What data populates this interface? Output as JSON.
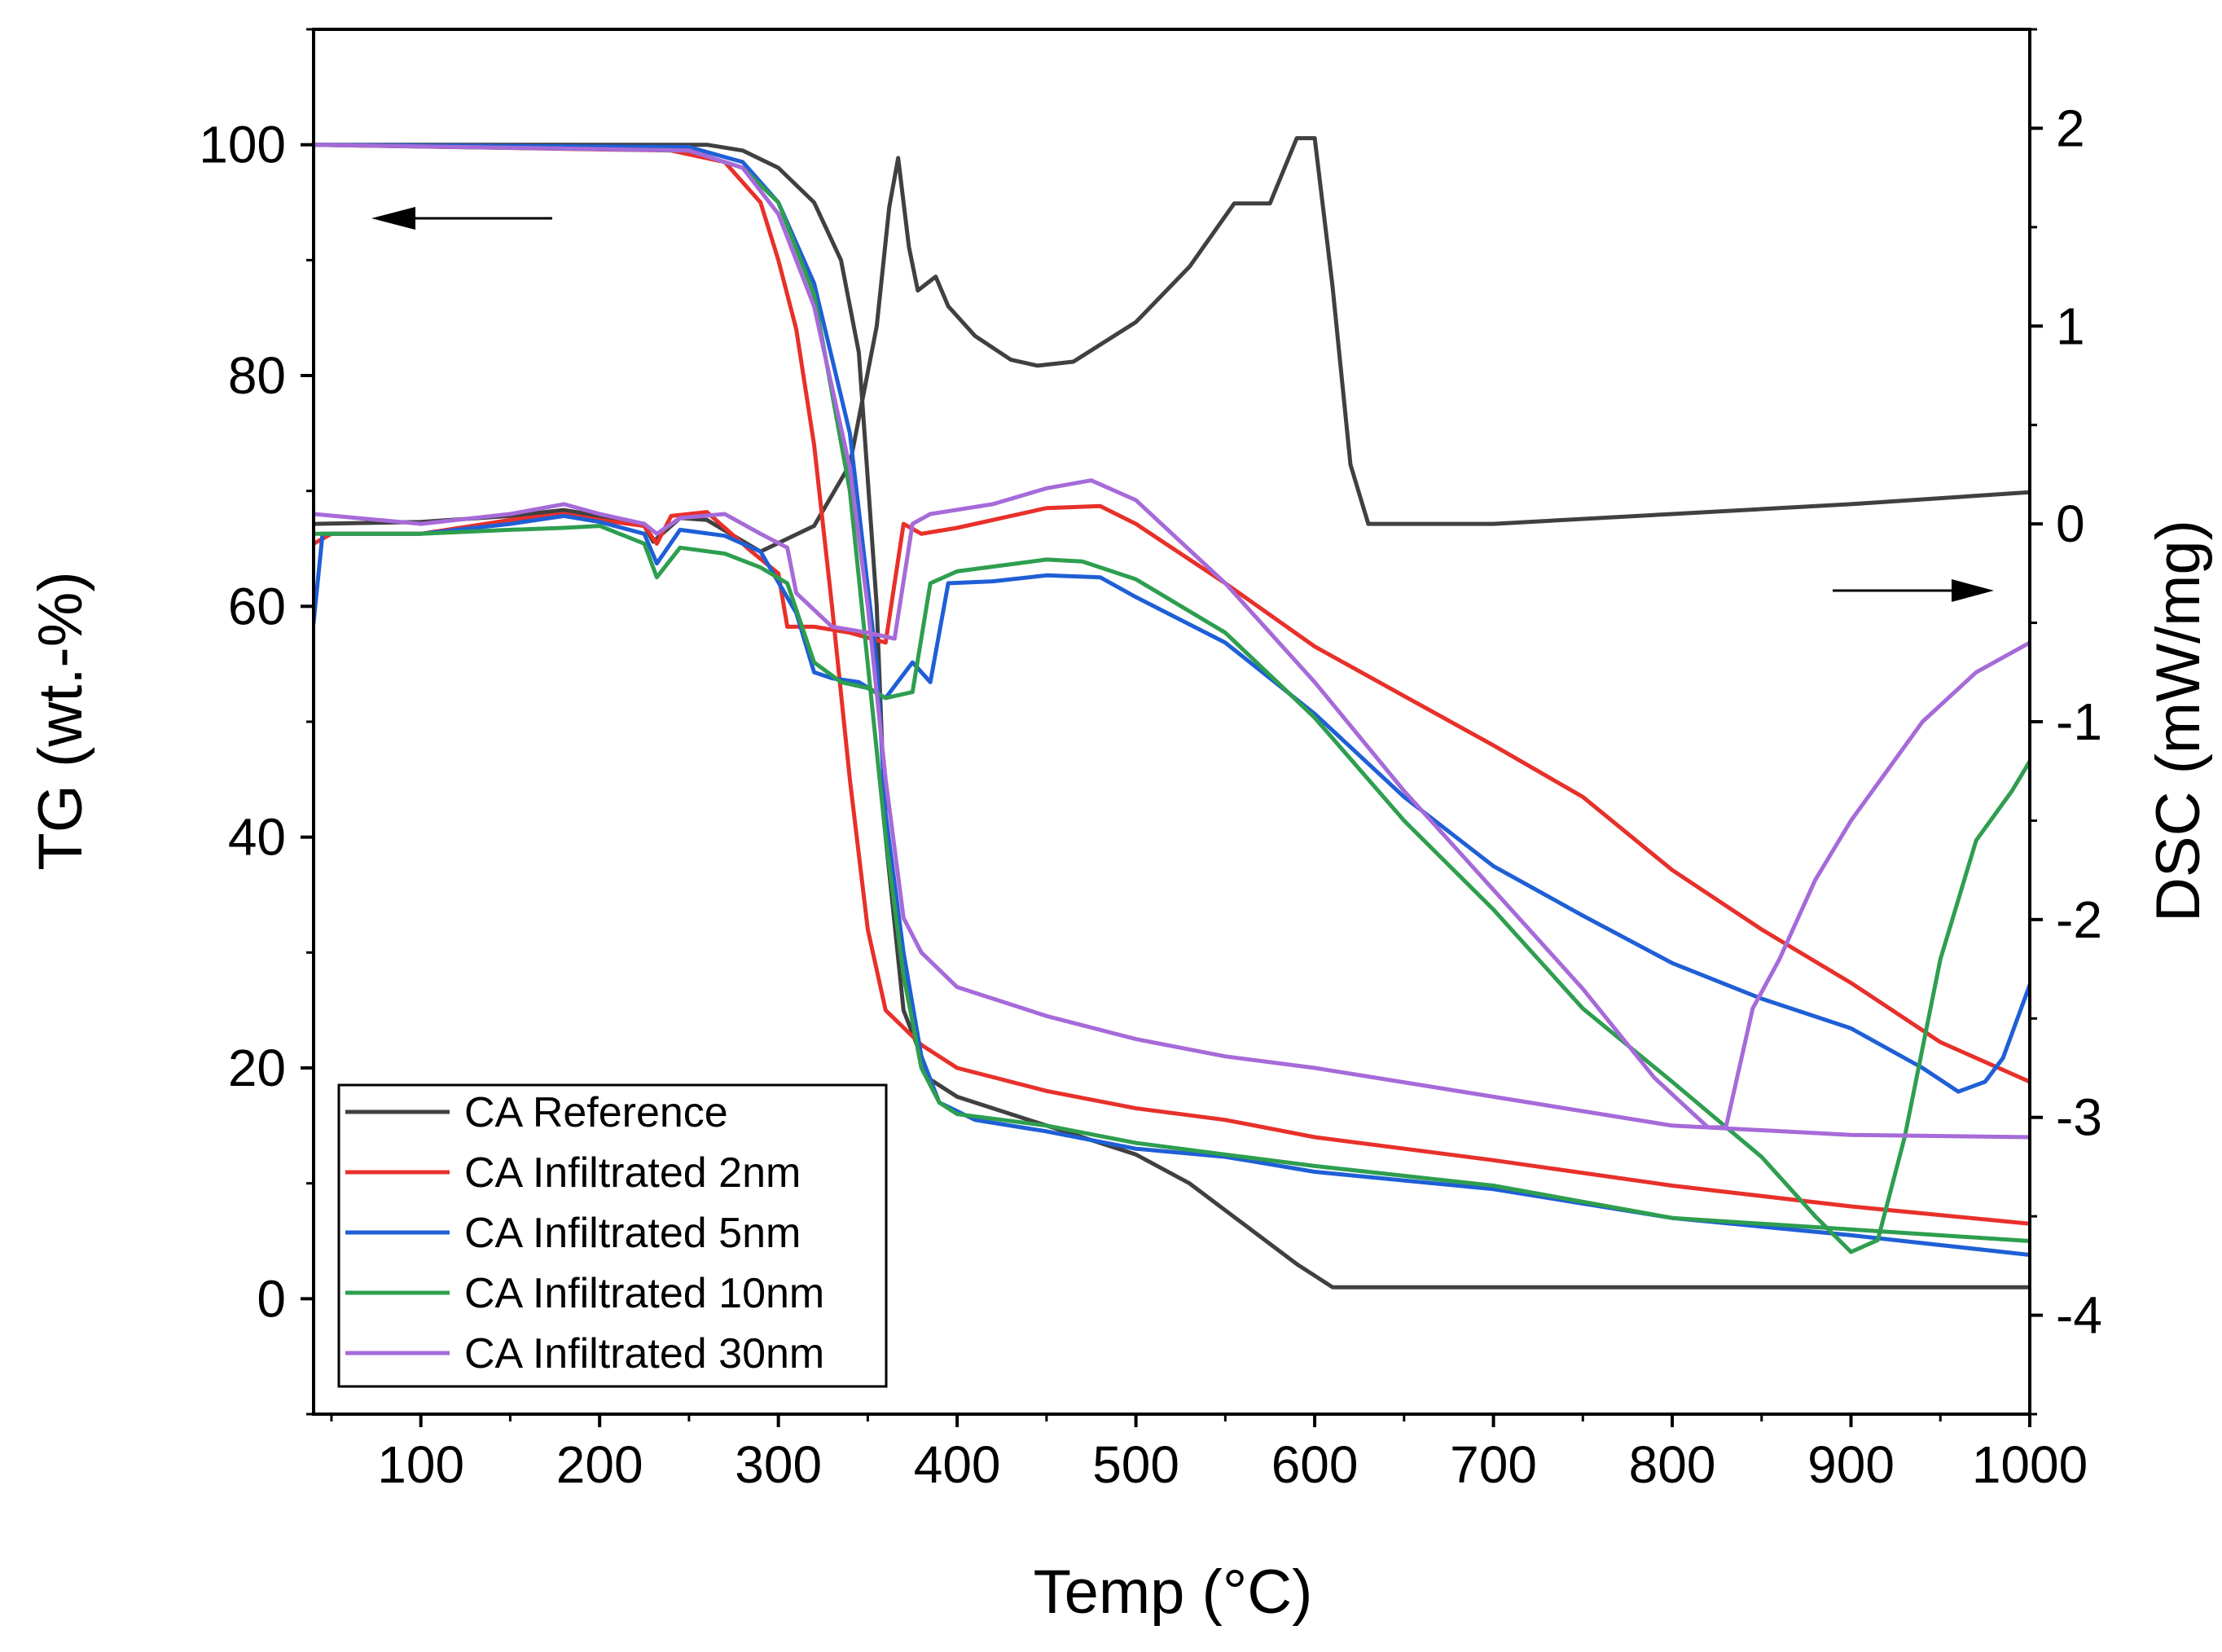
{
  "chart_data": {
    "type": "line",
    "xlabel": "Temp (°C)",
    "ylabel_left": "TG (wt.-%)",
    "ylabel_right": "DSC (mW/mg)",
    "xlim": [
      40,
      1000
    ],
    "ylim_left": [
      -10,
      110
    ],
    "ylim_right": [
      -4.5,
      2.5
    ],
    "x_ticks": [
      100,
      200,
      300,
      400,
      500,
      600,
      700,
      800,
      900,
      1000
    ],
    "y_left_ticks": [
      0,
      20,
      40,
      60,
      80,
      100
    ],
    "y_right_ticks": [
      -4,
      -3,
      -2,
      -1,
      0,
      1,
      2
    ],
    "grid": false,
    "legend_position": "bottom-left",
    "annotations": [
      {
        "name": "left-arrow",
        "points_to": "left axis (TG)"
      },
      {
        "name": "right-arrow",
        "points_to": "right axis (DSC)"
      }
    ],
    "series": [
      {
        "name": "CA Reference",
        "color": "#404040",
        "tg": [
          [
            40,
            100
          ],
          [
            200,
            100
          ],
          [
            260,
            100
          ],
          [
            280,
            99.5
          ],
          [
            300,
            98
          ],
          [
            320,
            95
          ],
          [
            335,
            90
          ],
          [
            345,
            82
          ],
          [
            355,
            60
          ],
          [
            360,
            40
          ],
          [
            370,
            25
          ],
          [
            385,
            19
          ],
          [
            400,
            17.5
          ],
          [
            450,
            15
          ],
          [
            500,
            12.5
          ],
          [
            530,
            10
          ],
          [
            560,
            6.5
          ],
          [
            590,
            3
          ],
          [
            610,
            1
          ],
          [
            640,
            1
          ],
          [
            700,
            1
          ],
          [
            800,
            1
          ],
          [
            900,
            1
          ],
          [
            1000,
            1
          ]
        ],
        "dsc": [
          [
            40,
            0
          ],
          [
            100,
            0.01
          ],
          [
            150,
            0.04
          ],
          [
            180,
            0.07
          ],
          [
            200,
            0.04
          ],
          [
            225,
            -0.01
          ],
          [
            230,
            -0.09
          ],
          [
            245,
            0.03
          ],
          [
            260,
            0.02
          ],
          [
            290,
            -0.14
          ],
          [
            320,
            -0.01
          ],
          [
            340,
            0.3
          ],
          [
            355,
            1.0
          ],
          [
            362,
            1.6
          ],
          [
            367,
            1.85
          ],
          [
            373,
            1.4
          ],
          [
            378,
            1.18
          ],
          [
            388,
            1.25
          ],
          [
            395,
            1.1
          ],
          [
            410,
            0.95
          ],
          [
            430,
            0.83
          ],
          [
            445,
            0.8
          ],
          [
            465,
            0.82
          ],
          [
            500,
            1.02
          ],
          [
            530,
            1.3
          ],
          [
            555,
            1.62
          ],
          [
            575,
            1.62
          ],
          [
            590,
            1.95
          ],
          [
            600,
            1.95
          ],
          [
            610,
            1.2
          ],
          [
            620,
            0.3
          ],
          [
            630,
            0.0
          ],
          [
            700,
            0.0
          ],
          [
            800,
            0.05
          ],
          [
            900,
            0.1
          ],
          [
            1000,
            0.16
          ]
        ]
      },
      {
        "name": "CA Infiltrated 2nm",
        "color": "#e8302a",
        "tg": [
          [
            40,
            100
          ],
          [
            240,
            99.5
          ],
          [
            270,
            98.5
          ],
          [
            290,
            95
          ],
          [
            300,
            90
          ],
          [
            310,
            84
          ],
          [
            320,
            74
          ],
          [
            330,
            60
          ],
          [
            340,
            45
          ],
          [
            350,
            32
          ],
          [
            360,
            25
          ],
          [
            380,
            22
          ],
          [
            400,
            20
          ],
          [
            450,
            18
          ],
          [
            500,
            16.5
          ],
          [
            550,
            15.5
          ],
          [
            600,
            14
          ],
          [
            700,
            12
          ],
          [
            800,
            9.8
          ],
          [
            900,
            8
          ],
          [
            1000,
            6.5
          ]
        ],
        "dsc": [
          [
            40,
            -0.1
          ],
          [
            50,
            -0.05
          ],
          [
            100,
            -0.05
          ],
          [
            150,
            0.02
          ],
          [
            180,
            0.05
          ],
          [
            200,
            0.02
          ],
          [
            225,
            -0.01
          ],
          [
            232,
            -0.1
          ],
          [
            240,
            0.04
          ],
          [
            260,
            0.06
          ],
          [
            285,
            -0.14
          ],
          [
            300,
            -0.25
          ],
          [
            305,
            -0.52
          ],
          [
            320,
            -0.52
          ],
          [
            340,
            -0.55
          ],
          [
            360,
            -0.6
          ],
          [
            370,
            0.0
          ],
          [
            380,
            -0.05
          ],
          [
            400,
            -0.02
          ],
          [
            450,
            0.08
          ],
          [
            480,
            0.09
          ],
          [
            500,
            0.0
          ],
          [
            550,
            -0.3
          ],
          [
            600,
            -0.62
          ],
          [
            650,
            -0.87
          ],
          [
            700,
            -1.12
          ],
          [
            750,
            -1.38
          ],
          [
            800,
            -1.75
          ],
          [
            850,
            -2.05
          ],
          [
            900,
            -2.32
          ],
          [
            950,
            -2.62
          ],
          [
            1000,
            -2.82
          ]
        ]
      },
      {
        "name": "CA Infiltrated 5nm",
        "color": "#1f5fd6",
        "tg": [
          [
            40,
            100
          ],
          [
            250,
            99.8
          ],
          [
            280,
            98.5
          ],
          [
            300,
            95
          ],
          [
            320,
            88
          ],
          [
            340,
            75
          ],
          [
            355,
            55
          ],
          [
            360,
            42
          ],
          [
            370,
            30
          ],
          [
            380,
            21
          ],
          [
            390,
            17
          ],
          [
            410,
            15.5
          ],
          [
            450,
            14.5
          ],
          [
            500,
            13
          ],
          [
            550,
            12.3
          ],
          [
            600,
            11
          ],
          [
            700,
            9.5
          ],
          [
            800,
            7
          ],
          [
            900,
            5.5
          ],
          [
            1000,
            3.8
          ]
        ],
        "dsc": [
          [
            40,
            -0.5
          ],
          [
            45,
            -0.05
          ],
          [
            100,
            -0.05
          ],
          [
            150,
            0.0
          ],
          [
            180,
            0.04
          ],
          [
            200,
            0.01
          ],
          [
            225,
            -0.05
          ],
          [
            232,
            -0.2
          ],
          [
            245,
            -0.03
          ],
          [
            270,
            -0.06
          ],
          [
            290,
            -0.14
          ],
          [
            310,
            -0.45
          ],
          [
            320,
            -0.75
          ],
          [
            330,
            -0.78
          ],
          [
            345,
            -0.8
          ],
          [
            360,
            -0.88
          ],
          [
            375,
            -0.7
          ],
          [
            385,
            -0.8
          ],
          [
            395,
            -0.3
          ],
          [
            420,
            -0.29
          ],
          [
            450,
            -0.26
          ],
          [
            480,
            -0.27
          ],
          [
            500,
            -0.37
          ],
          [
            550,
            -0.6
          ],
          [
            600,
            -0.96
          ],
          [
            650,
            -1.38
          ],
          [
            700,
            -1.73
          ],
          [
            750,
            -1.98
          ],
          [
            800,
            -2.22
          ],
          [
            850,
            -2.4
          ],
          [
            900,
            -2.55
          ],
          [
            940,
            -2.75
          ],
          [
            960,
            -2.87
          ],
          [
            975,
            -2.82
          ],
          [
            985,
            -2.7
          ],
          [
            1000,
            -2.33
          ]
        ]
      },
      {
        "name": "CA Infiltrated 10nm",
        "color": "#2e9e4f",
        "tg": [
          [
            40,
            100
          ],
          [
            250,
            99.5
          ],
          [
            280,
            98
          ],
          [
            300,
            95
          ],
          [
            320,
            87
          ],
          [
            340,
            70
          ],
          [
            350,
            55
          ],
          [
            360,
            40
          ],
          [
            370,
            28
          ],
          [
            380,
            20
          ],
          [
            390,
            17
          ],
          [
            400,
            16
          ],
          [
            450,
            15
          ],
          [
            500,
            13.5
          ],
          [
            550,
            12.5
          ],
          [
            600,
            11.5
          ],
          [
            700,
            9.8
          ],
          [
            800,
            7
          ],
          [
            900,
            6
          ],
          [
            1000,
            5
          ]
        ],
        "dsc": [
          [
            40,
            -0.05
          ],
          [
            100,
            -0.05
          ],
          [
            150,
            -0.03
          ],
          [
            180,
            -0.02
          ],
          [
            200,
            -0.01
          ],
          [
            225,
            -0.1
          ],
          [
            232,
            -0.27
          ],
          [
            245,
            -0.12
          ],
          [
            270,
            -0.15
          ],
          [
            290,
            -0.22
          ],
          [
            305,
            -0.3
          ],
          [
            320,
            -0.7
          ],
          [
            335,
            -0.8
          ],
          [
            350,
            -0.83
          ],
          [
            360,
            -0.88
          ],
          [
            375,
            -0.85
          ],
          [
            385,
            -0.3
          ],
          [
            400,
            -0.24
          ],
          [
            450,
            -0.18
          ],
          [
            470,
            -0.19
          ],
          [
            500,
            -0.28
          ],
          [
            550,
            -0.55
          ],
          [
            600,
            -0.98
          ],
          [
            650,
            -1.5
          ],
          [
            700,
            -1.95
          ],
          [
            750,
            -2.45
          ],
          [
            800,
            -2.82
          ],
          [
            850,
            -3.2
          ],
          [
            880,
            -3.5
          ],
          [
            900,
            -3.68
          ],
          [
            915,
            -3.62
          ],
          [
            930,
            -3.1
          ],
          [
            950,
            -2.2
          ],
          [
            970,
            -1.6
          ],
          [
            990,
            -1.35
          ],
          [
            1000,
            -1.2
          ]
        ]
      },
      {
        "name": "CA Infiltrated 30nm",
        "color": "#a66ad9",
        "tg": [
          [
            40,
            100
          ],
          [
            250,
            99.5
          ],
          [
            280,
            98
          ],
          [
            300,
            94
          ],
          [
            320,
            86
          ],
          [
            340,
            72
          ],
          [
            350,
            60
          ],
          [
            360,
            45
          ],
          [
            370,
            33
          ],
          [
            380,
            30
          ],
          [
            400,
            27
          ],
          [
            450,
            24.5
          ],
          [
            500,
            22.5
          ],
          [
            550,
            21
          ],
          [
            600,
            20
          ],
          [
            700,
            17.5
          ],
          [
            800,
            15
          ],
          [
            900,
            14.2
          ],
          [
            1000,
            14
          ]
        ],
        "dsc": [
          [
            40,
            0.05
          ],
          [
            100,
            0.0
          ],
          [
            150,
            0.05
          ],
          [
            180,
            0.1
          ],
          [
            200,
            0.05
          ],
          [
            225,
            0.0
          ],
          [
            232,
            -0.05
          ],
          [
            245,
            0.03
          ],
          [
            270,
            0.05
          ],
          [
            290,
            -0.05
          ],
          [
            305,
            -0.12
          ],
          [
            310,
            -0.35
          ],
          [
            330,
            -0.52
          ],
          [
            350,
            -0.55
          ],
          [
            365,
            -0.58
          ],
          [
            375,
            0.0
          ],
          [
            385,
            0.05
          ],
          [
            420,
            0.1
          ],
          [
            450,
            0.18
          ],
          [
            475,
            0.22
          ],
          [
            500,
            0.12
          ],
          [
            550,
            -0.3
          ],
          [
            600,
            -0.8
          ],
          [
            650,
            -1.35
          ],
          [
            700,
            -1.85
          ],
          [
            750,
            -2.35
          ],
          [
            790,
            -2.8
          ],
          [
            820,
            -3.05
          ],
          [
            830,
            -3.05
          ],
          [
            845,
            -2.45
          ],
          [
            860,
            -2.2
          ],
          [
            880,
            -1.8
          ],
          [
            900,
            -1.5
          ],
          [
            940,
            -1.0
          ],
          [
            970,
            -0.75
          ],
          [
            1000,
            -0.6
          ]
        ]
      }
    ]
  }
}
